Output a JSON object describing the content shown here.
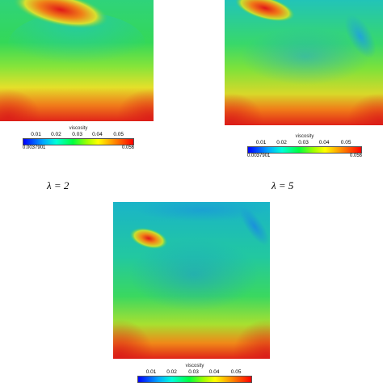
{
  "panels": [
    {
      "id": "lambda-2",
      "label": "λ = 2"
    },
    {
      "id": "lambda-5",
      "label": "λ = 5"
    },
    {
      "id": "lambda-bottom",
      "label": ""
    }
  ],
  "legend": {
    "title": "viscosity",
    "ticks": [
      "0.01",
      "0.02",
      "0.03",
      "0.04",
      "0.05"
    ],
    "min": "0.0037901",
    "max": "0.056",
    "colormap": [
      "#0000ff",
      "#00a8ff",
      "#00ffd8",
      "#00ff40",
      "#a0ff00",
      "#ffff00",
      "#ff9000",
      "#ff0000"
    ]
  },
  "labels": {
    "left": "λ = 2",
    "right": "λ = 5"
  }
}
